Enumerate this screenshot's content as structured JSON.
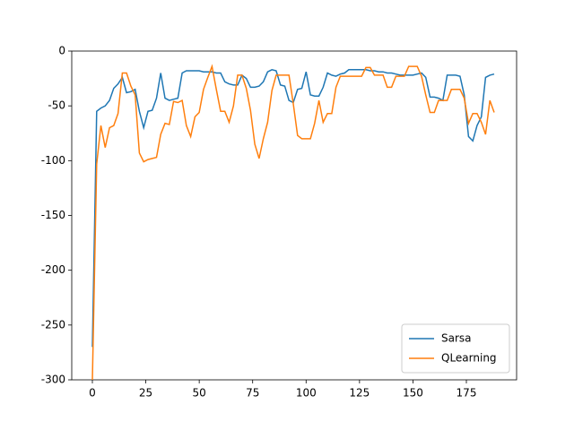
{
  "chart_data": {
    "type": "line",
    "x": [
      0,
      2,
      4,
      6,
      8,
      10,
      12,
      14,
      16,
      18,
      20,
      22,
      24,
      26,
      28,
      30,
      32,
      34,
      36,
      38,
      40,
      42,
      44,
      46,
      48,
      50,
      52,
      54,
      56,
      58,
      60,
      62,
      64,
      66,
      68,
      70,
      72,
      74,
      76,
      78,
      80,
      82,
      84,
      86,
      88,
      90,
      92,
      94,
      96,
      98,
      100,
      102,
      104,
      106,
      108,
      110,
      112,
      114,
      116,
      118,
      120,
      122,
      124,
      126,
      128,
      130,
      132,
      134,
      136,
      138,
      140,
      142,
      144,
      146,
      148,
      150,
      152,
      154,
      156,
      158,
      160,
      162,
      164,
      166,
      168,
      170,
      172,
      174,
      176,
      178,
      180,
      182,
      184,
      186,
      188
    ],
    "series": [
      {
        "name": "Sarsa",
        "color": "#1f77b4",
        "values": [
          -270,
          -55,
          -52,
          -50,
          -45,
          -34,
          -30,
          -24,
          -38,
          -37,
          -35,
          -55,
          -70,
          -55,
          -54,
          -43,
          -20,
          -43,
          -45,
          -44,
          -43,
          -20,
          -18,
          -18,
          -18,
          -18,
          -19,
          -19,
          -19,
          -20,
          -20,
          -28,
          -30,
          -31,
          -31,
          -22,
          -25,
          -33,
          -33,
          -32,
          -28,
          -19,
          -17,
          -18,
          -31,
          -32,
          -45,
          -47,
          -35,
          -34,
          -19,
          -40,
          -41,
          -41,
          -33,
          -20,
          -22,
          -23,
          -21,
          -20,
          -17,
          -17,
          -17,
          -17,
          -17,
          -18,
          -18,
          -19,
          -19,
          -20,
          -20,
          -21,
          -22,
          -22,
          -22,
          -22,
          -21,
          -20,
          -24,
          -42,
          -42,
          -43,
          -45,
          -22,
          -22,
          -22,
          -23,
          -40,
          -78,
          -82,
          -68,
          -60,
          -24,
          -22,
          -21
        ]
      },
      {
        "name": "QLearning",
        "color": "#ff7f0e",
        "values": [
          -300,
          -103,
          -68,
          -88,
          -70,
          -68,
          -57,
          -20,
          -20,
          -32,
          -40,
          -93,
          -101,
          -99,
          -98,
          -97,
          -76,
          -66,
          -67,
          -46,
          -47,
          -45,
          -68,
          -78,
          -60,
          -56,
          -35,
          -24,
          -14,
          -35,
          -55,
          -55,
          -65,
          -50,
          -22,
          -22,
          -34,
          -54,
          -85,
          -98,
          -80,
          -65,
          -36,
          -22,
          -22,
          -22,
          -22,
          -48,
          -77,
          -80,
          -80,
          -80,
          -66,
          -45,
          -65,
          -57,
          -57,
          -33,
          -23,
          -23,
          -23,
          -23,
          -23,
          -23,
          -15,
          -15,
          -22,
          -22,
          -22,
          -33,
          -33,
          -23,
          -23,
          -23,
          -14,
          -14,
          -14,
          -23,
          -40,
          -56,
          -56,
          -45,
          -45,
          -45,
          -35,
          -35,
          -35,
          -43,
          -66,
          -57,
          -57,
          -65,
          -76,
          -45,
          -56
        ]
      }
    ],
    "xlim": [
      -9.65,
      198.5
    ],
    "xticks": [
      0,
      25,
      50,
      75,
      100,
      125,
      150,
      175
    ],
    "ylim": [
      -300,
      0
    ],
    "yticks": [
      -300,
      -250,
      -200,
      -150,
      -100,
      -50,
      0
    ],
    "legend": "lower right"
  }
}
